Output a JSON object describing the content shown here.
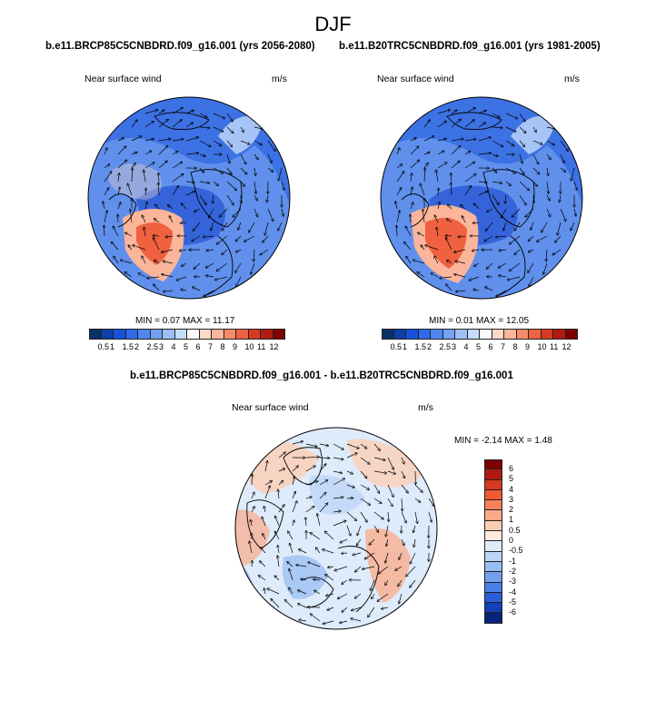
{
  "title": "DJF",
  "panels": [
    {
      "title": "b.e11.BRCP85C5CNBDRD.f09_g16.001 (yrs 2056-2080)",
      "variable": "Near surface wind",
      "units": "m/s",
      "stats": "MIN =  0.07 MAX = 11.17",
      "min": 0.07,
      "max": 11.17
    },
    {
      "title": "b.e11.B20TRC5CNBDRD.f09_g16.001 (yrs 1981-2005)",
      "variable": "Near surface wind",
      "units": "m/s",
      "stats": "MIN =  0.01 MAX = 12.05",
      "min": 0.01,
      "max": 12.05
    }
  ],
  "diff_panel": {
    "title": "b.e11.BRCP85C5CNBDRD.f09_g16.001 - b.e11.B20TRC5CNBDRD.f09_g16.001",
    "variable": "Near surface wind",
    "units": "m/s",
    "stats": "MIN = -2.14 MAX =  1.48",
    "min": -2.14,
    "max": 1.48
  },
  "colorbar_abs": {
    "labels": [
      "0.5",
      "1",
      "1.5",
      "2",
      "2.5",
      "3",
      "4",
      "5",
      "6",
      "7",
      "8",
      "9",
      "10",
      "11",
      "12"
    ],
    "colors": [
      "#08306b",
      "#0d3fa8",
      "#1552d9",
      "#2f6ae8",
      "#4f86ef",
      "#73a2f3",
      "#9dbff7",
      "#c6dcfb",
      "#f9f9f9",
      "#fdd9c8",
      "#fbb59a",
      "#f78c68",
      "#ef6140",
      "#d73a20",
      "#b11a12",
      "#7f0000"
    ]
  },
  "colorbar_diff": {
    "labels": [
      "6",
      "5",
      "4",
      "3",
      "2",
      "1",
      "0.5",
      "0",
      "-0.5",
      "-1",
      "-2",
      "-3",
      "-4",
      "-5",
      "-6"
    ],
    "colors": [
      "#7f0000",
      "#b11a12",
      "#d73a20",
      "#ef5a33",
      "#f6805a",
      "#fba987",
      "#fdcdb3",
      "#feeadf",
      "#deebfb",
      "#bdd6f7",
      "#98bdf3",
      "#739ff0",
      "#4a7ee9",
      "#2a5ed9",
      "#1240b8",
      "#08247a"
    ]
  }
}
